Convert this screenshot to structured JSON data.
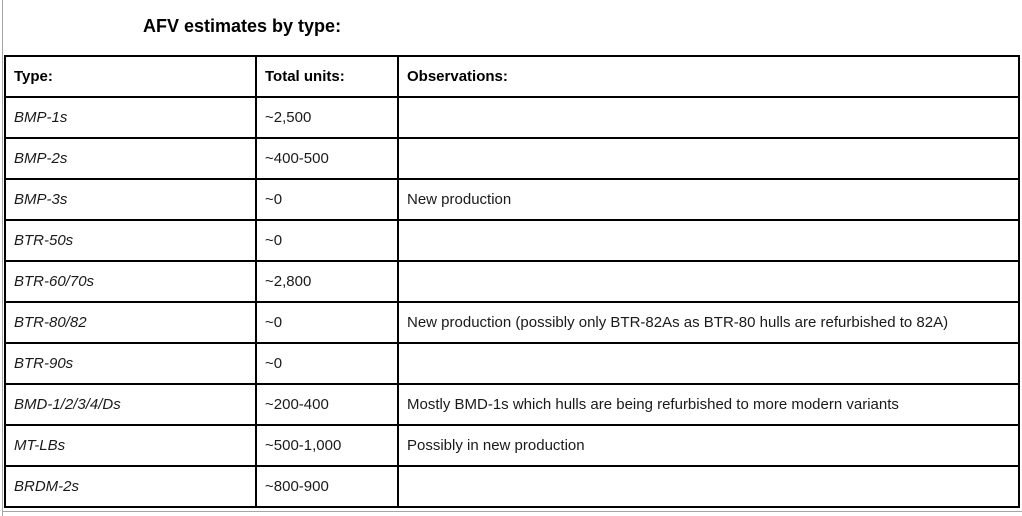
{
  "title": "AFV estimates by type:",
  "colors": {
    "border": "#000000",
    "text": "#1a1a1a",
    "header_text": "#000000",
    "page_edge": "#a6a6a6",
    "background": "#ffffff"
  },
  "table": {
    "headers": [
      "Type:",
      "Total units:",
      "Observations:"
    ],
    "rows": [
      {
        "type": "BMP-1s",
        "total_units": "~2,500",
        "observations": ""
      },
      {
        "type": "BMP-2s",
        "total_units": "~400-500",
        "observations": ""
      },
      {
        "type": "BMP-3s",
        "total_units": "~0",
        "observations": "New production"
      },
      {
        "type": "BTR-50s",
        "total_units": "~0",
        "observations": ""
      },
      {
        "type": "BTR-60/70s",
        "total_units": "~2,800",
        "observations": ""
      },
      {
        "type": "BTR-80/82",
        "total_units": "~0",
        "observations": "New production (possibly only BTR-82As as BTR-80 hulls are refurbished to 82A)"
      },
      {
        "type": "BTR-90s",
        "total_units": "~0",
        "observations": ""
      },
      {
        "type": "BMD-1/2/3/4/Ds",
        "total_units": "~200-400",
        "observations": "Mostly BMD-1s which hulls are being refurbished to more modern variants"
      },
      {
        "type": "MT-LBs",
        "total_units": "~500-1,000",
        "observations": "Possibly in new production"
      },
      {
        "type": "BRDM-2s",
        "total_units": "~800-900",
        "observations": ""
      }
    ]
  }
}
